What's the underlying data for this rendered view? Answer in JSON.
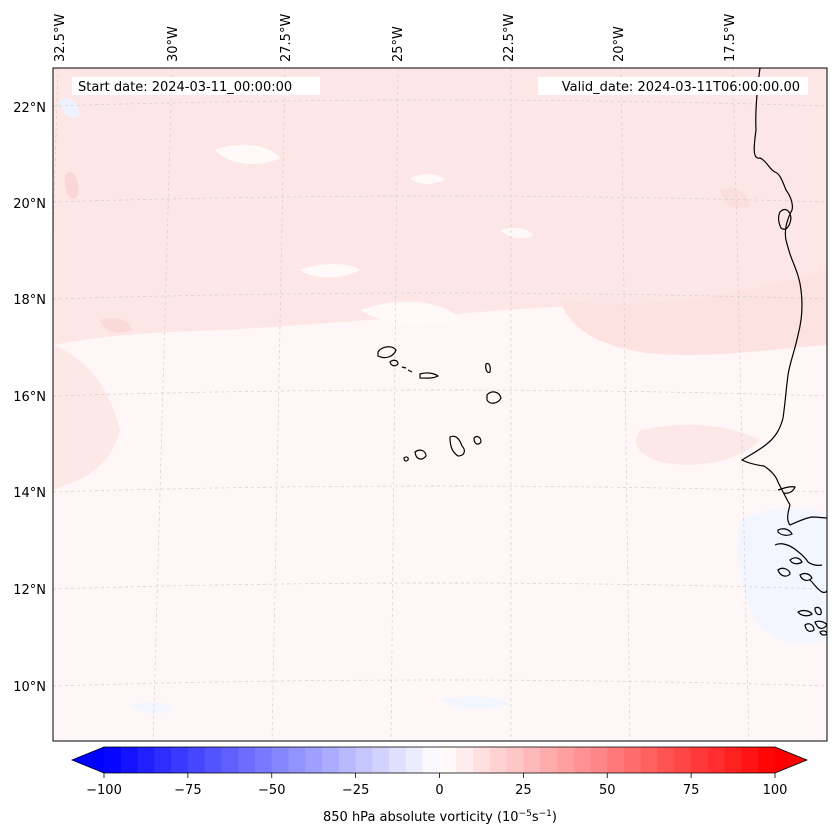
{
  "header": {
    "start_date": "Start date: 2024-03-11_00:00:00",
    "valid_date": "Valid_date: 2024-03-11T06:00:00.00"
  },
  "map": {
    "lon_labels": [
      "32.5°W",
      "30°W",
      "27.5°W",
      "25°W",
      "22.5°W",
      "20°W",
      "17.5°W"
    ],
    "lat_labels": [
      "22°N",
      "20°N",
      "18°N",
      "16°N",
      "14°N",
      "12°N",
      "10°N"
    ],
    "field_colors": {
      "light_red": "#fde4e4",
      "lighter_red": "#feeeee",
      "near_white": "#fff7f7",
      "light_blue": "#eef1ff"
    }
  },
  "colorbar": {
    "ticks": [
      -100,
      -75,
      -50,
      -25,
      0,
      25,
      50,
      75,
      100
    ],
    "tick_labels": [
      "−100",
      "−75",
      "−50",
      "−25",
      "0",
      "25",
      "50",
      "75",
      "100"
    ],
    "label": "850 hPa absolute vorticity (10",
    "label_exp1": "−5",
    "label_mid": "s",
    "label_exp2": "−1",
    "label_end": ")",
    "low_color": "#0000ff",
    "mid_color": "#ffffff",
    "high_color": "#ff0000"
  }
}
